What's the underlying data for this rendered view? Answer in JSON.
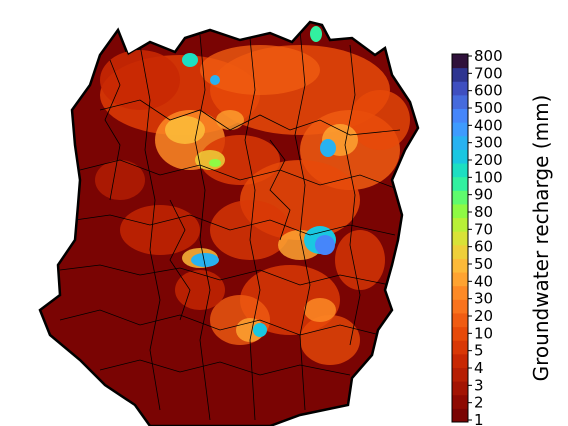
{
  "colorbar": {
    "label": "Groundwater recharge (mm)",
    "ticks": [
      "1",
      "2",
      "3",
      "4",
      "5",
      "10",
      "20",
      "30",
      "40",
      "50",
      "60",
      "70",
      "80",
      "90",
      "100",
      "200",
      "300",
      "400",
      "500",
      "600",
      "700",
      "800"
    ],
    "colors": [
      "#7a0403",
      "#8e0a02",
      "#a31403",
      "#b61f04",
      "#c82803",
      "#d93806",
      "#e74a09",
      "#f05c12",
      "#f9731d",
      "#fd8a26",
      "#fea331",
      "#fcba39",
      "#eecf3a",
      "#d8e237",
      "#b8f037",
      "#8efa44",
      "#5ffb6e",
      "#32f1a0",
      "#1ddfc2",
      "#1ac7e1",
      "#28b2f1",
      "#3e9bfe",
      "#4686fa",
      "#466bdd",
      "#3f4fc0",
      "#2e3590",
      "#30123b"
    ],
    "title_prefix": "Groundwater recharge"
  },
  "map": {
    "base_color": "#7a0403",
    "border_color": "#000000"
  }
}
